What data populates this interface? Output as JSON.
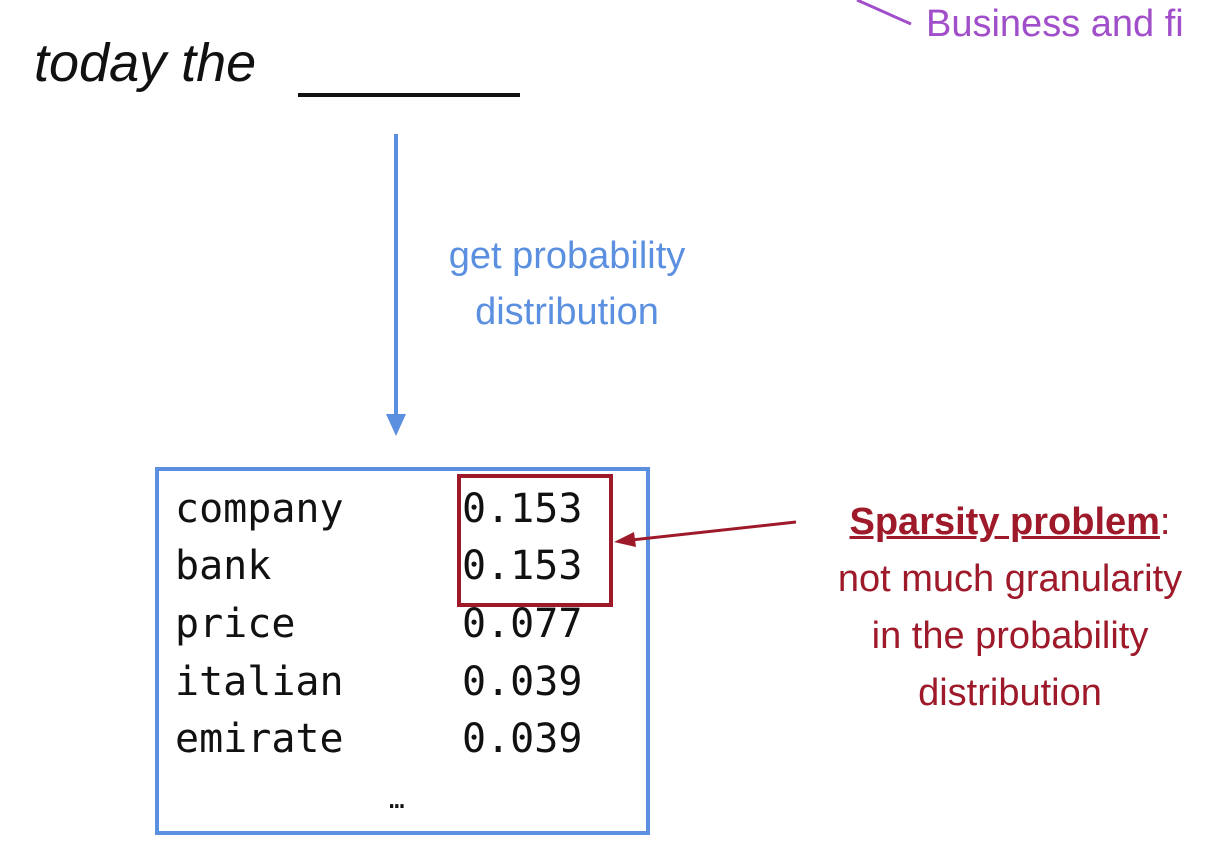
{
  "top_label": "Business and fi",
  "prompt": {
    "text": "today the"
  },
  "arrow_label": {
    "line1": "get probability",
    "line2": "distribution"
  },
  "distribution": {
    "rows": [
      {
        "word": "company",
        "prob": "0.153"
      },
      {
        "word": "bank",
        "prob": "0.153"
      },
      {
        "word": "price",
        "prob": "0.077"
      },
      {
        "word": "italian",
        "prob": "0.039"
      },
      {
        "word": "emirate",
        "prob": "0.039"
      }
    ],
    "ellipsis": "…"
  },
  "note": {
    "title": "Sparsity problem",
    "colon": ":",
    "line1": "not much granularity",
    "line2": "in the probability",
    "line3": "distribution"
  },
  "colors": {
    "prompt_text": "#111111",
    "blue_accent": "#5b8fe0",
    "red_accent": "#9e1a2a",
    "purple_label": "#a04ec9"
  }
}
